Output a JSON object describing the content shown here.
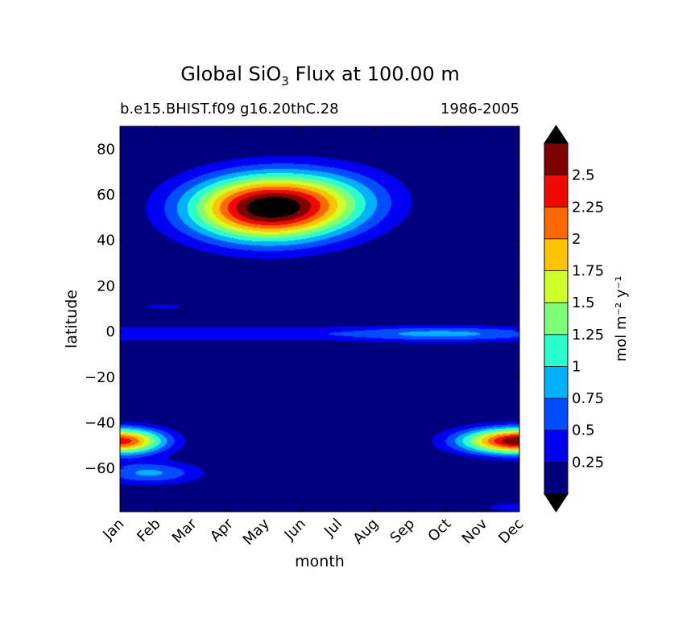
{
  "title": {
    "prefix": "Global SiO",
    "subscript": "3",
    "suffix": " Flux at 100.00 m"
  },
  "subtitle_left": "b.e15.BHIST.f09 g16.20thC.28",
  "subtitle_right": "1986-2005",
  "chart_data": {
    "type": "heatmap",
    "xlabel": "month",
    "ylabel": "latitude",
    "x_ticks": [
      "Jan",
      "Feb",
      "Mar",
      "Apr",
      "May",
      "Jun",
      "Jul",
      "Aug",
      "Sep",
      "Oct",
      "Nov",
      "Dec"
    ],
    "xlim": [
      1,
      12
    ],
    "ylim": [
      -79,
      90
    ],
    "y_ticks": [
      -60,
      -40,
      -20,
      0,
      20,
      40,
      60,
      80
    ],
    "y_tick_labels": [
      "−60",
      "−40",
      "−20",
      "0",
      "20",
      "40",
      "60",
      "80"
    ],
    "colorbar": {
      "label": "mol m⁻² y⁻¹",
      "levels": [
        0,
        0.25,
        0.5,
        0.75,
        1.0,
        1.25,
        1.5,
        1.75,
        2.0,
        2.25,
        2.5,
        2.75
      ],
      "tick_labels": [
        "0.25",
        "0.5",
        "0.75",
        "1",
        "1.25",
        "1.5",
        "1.75",
        "2",
        "2.25",
        "2.5"
      ],
      "colors": [
        "#00007f",
        "#0000f3",
        "#004dff",
        "#00b1ff",
        "#29ffce",
        "#7dff7a",
        "#ceff29",
        "#ffc400",
        "#ff6800",
        "#f10800",
        "#7f0000"
      ],
      "extend_under": "#000000",
      "extend_over": "#000000"
    },
    "features": [
      {
        "name": "north-atlantic-bloom",
        "month_center": 5.0,
        "lat_center": 54,
        "month_sigma": 1.5,
        "lat_sigma": 10,
        "peak": 2.75
      },
      {
        "name": "north-summer-extension",
        "month_center": 6.8,
        "lat_center": 58,
        "month_sigma": 1.4,
        "lat_sigma": 10,
        "peak": 0.65
      },
      {
        "name": "equatorial-band",
        "month_center": 6.5,
        "lat_center": -1,
        "month_sigma": 40,
        "lat_sigma": 2.5,
        "peak": 0.45
      },
      {
        "name": "equatorial-autumn",
        "month_center": 9.8,
        "lat_center": -1,
        "month_sigma": 1.5,
        "lat_sigma": 2.5,
        "peak": 0.4
      },
      {
        "name": "north-tropical-streak",
        "month_center": 2.2,
        "lat_center": 11,
        "month_sigma": 0.6,
        "lat_sigma": 0.9,
        "peak": 0.35
      },
      {
        "name": "southern-ocean-dec",
        "month_center": 12.0,
        "lat_center": -48,
        "month_sigma": 1.1,
        "lat_sigma": 4,
        "peak": 2.75
      },
      {
        "name": "southern-ocean-jan",
        "month_center": 1.0,
        "lat_center": -48,
        "month_sigma": 0.85,
        "lat_sigma": 4,
        "peak": 2.4
      },
      {
        "name": "southern-high-lat-feb",
        "month_center": 1.8,
        "lat_center": -62,
        "month_sigma": 1.0,
        "lat_sigma": 3.5,
        "peak": 0.8
      },
      {
        "name": "antarctic-dec",
        "month_center": 12.0,
        "lat_center": -77,
        "month_sigma": 1.0,
        "lat_sigma": 2,
        "peak": 0.35
      }
    ]
  }
}
